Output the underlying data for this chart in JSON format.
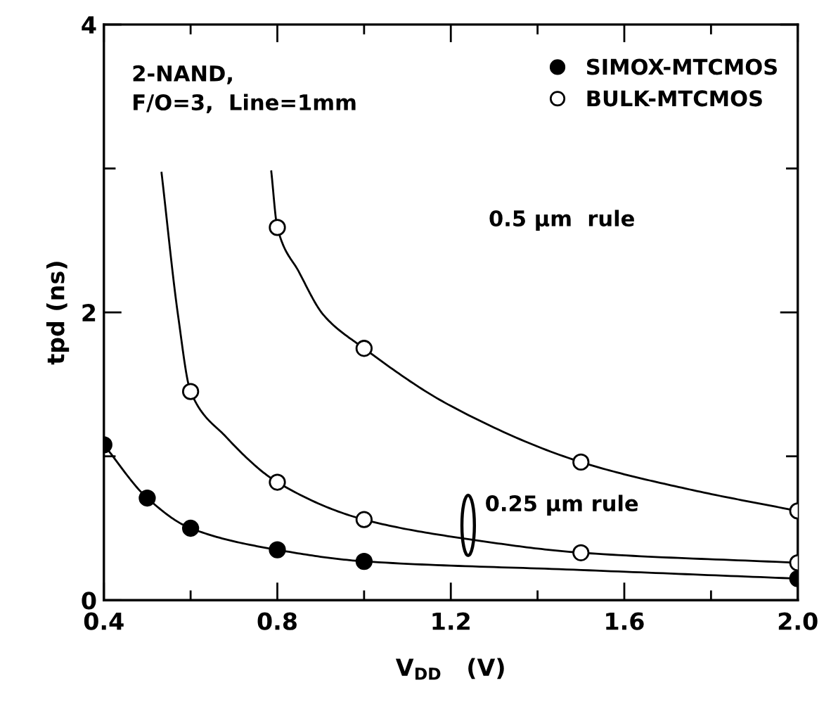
{
  "chart_data": {
    "type": "scatter",
    "xlabel": "V$_{DD}$   (V)",
    "ylabel": "tpd (ns)",
    "xlim": [
      0.4,
      2.0
    ],
    "ylim": [
      0,
      4
    ],
    "xticks": [
      0.4,
      {
        "value": 0.6,
        "label": null
      },
      0.8,
      {
        "value": 1.0,
        "label": null
      },
      1.2,
      {
        "value": 1.4,
        "label": null
      },
      1.6,
      {
        "value": 1.8,
        "label": null
      },
      {
        "value": 2.0,
        "label": "2.0"
      }
    ],
    "yticks": [
      0,
      {
        "value": 1,
        "label": null
      },
      2,
      {
        "value": 3,
        "label": null
      },
      4
    ],
    "grid": false,
    "legend": "top right",
    "series": [
      {
        "type": "line",
        "marker": "none",
        "color": "#000000",
        "x": [
          0.786,
          0.8,
          0.85,
          0.907,
          1.0,
          1.2,
          1.5,
          1.75,
          2.0
        ],
        "values": [
          2.98,
          2.59,
          2.28,
          1.98,
          1.75,
          1.35,
          0.96,
          0.77,
          0.62
        ]
      },
      {
        "type": "line",
        "marker": "none",
        "color": "#000000",
        "x": [
          0.533,
          0.571,
          0.6,
          0.68,
          0.8,
          1.0,
          1.25,
          1.5,
          2.0
        ],
        "values": [
          2.97,
          1.98,
          1.45,
          1.14,
          0.82,
          0.56,
          0.42,
          0.33,
          0.26
        ]
      },
      {
        "type": "line",
        "marker": "none",
        "color": "#000000",
        "x": [
          0.4,
          0.5,
          0.6,
          0.8,
          1.0,
          1.5,
          2.0
        ],
        "values": [
          1.08,
          0.71,
          0.5,
          0.35,
          0.27,
          0.21,
          0.15
        ]
      },
      {
        "marker": "circle",
        "name": "SIMOX-MTCMOS",
        "color": "#000000",
        "x": [
          0.4,
          0.5,
          0.6,
          0.8,
          1.0,
          2.0
        ],
        "values": [
          1.08,
          0.71,
          0.5,
          0.35,
          0.27,
          0.15
        ]
      },
      {
        "marker": "circle",
        "name": "BULK-MTCMOS",
        "color": "#ffffff",
        "x": [
          0.8,
          1.0,
          1.5,
          2.0,
          0.6,
          0.8,
          1.0,
          1.5,
          2.0
        ],
        "values": [
          2.59,
          1.75,
          0.96,
          0.62,
          1.45,
          0.82,
          0.56,
          0.33,
          0.26
        ]
      }
    ],
    "annotations": [
      "2-NAND,\nF/O=3,  Line=1mm",
      "0.5 µm  rule",
      "0.25 µm rule"
    ]
  }
}
